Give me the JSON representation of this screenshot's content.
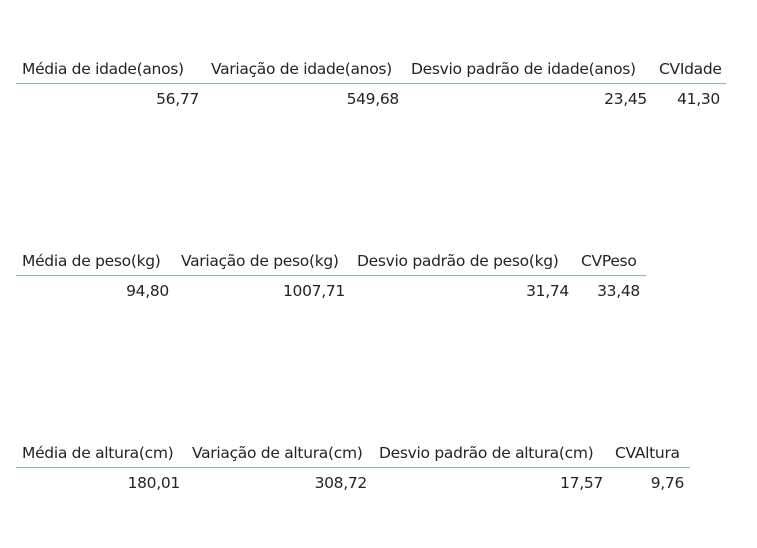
{
  "tables": [
    {
      "headers": [
        "Média de idade(anos)",
        "Variação de idade(anos)",
        "Desvio padrão de idade(anos)",
        "CVIdade"
      ],
      "values": [
        "56,77",
        "549,68",
        "23,45",
        "41,30"
      ]
    },
    {
      "headers": [
        "Média de peso(kg)",
        "Variação de peso(kg)",
        "Desvio padrão de peso(kg)",
        "CVPeso"
      ],
      "values": [
        "94,80",
        "1007,71",
        "31,74",
        "33,48"
      ]
    },
    {
      "headers": [
        "Média de altura(cm)",
        "Variação de altura(cm)",
        "Desvio padrão de altura(cm)",
        "CVAltura"
      ],
      "values": [
        "180,01",
        "308,72",
        "17,57",
        "9,76"
      ]
    }
  ]
}
